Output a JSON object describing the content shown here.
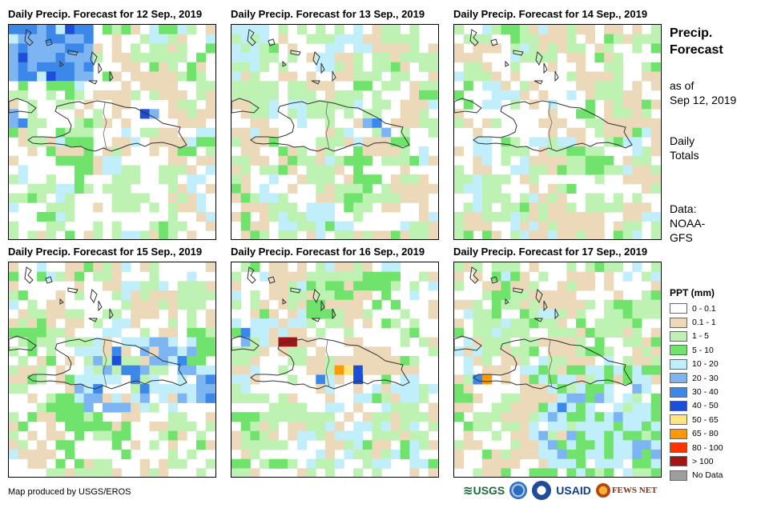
{
  "panels": [
    {
      "title": "Daily Precip. Forecast for 12 Sep., 2019",
      "seed": 12
    },
    {
      "title": "Daily Precip. Forecast for 13 Sep., 2019",
      "seed": 13
    },
    {
      "title": "Daily Precip. Forecast for 14 Sep., 2019",
      "seed": 14
    },
    {
      "title": "Daily Precip. Forecast for 15 Sep., 2019",
      "seed": 15
    },
    {
      "title": "Daily Precip. Forecast for 16 Sep., 2019",
      "seed": 16
    },
    {
      "title": "Daily Precip. Forecast for 17 Sep., 2019",
      "seed": 17
    }
  ],
  "side": {
    "title_line1": "Precip.",
    "title_line2": "Forecast",
    "asof_line1": "as of",
    "asof_line2": "Sep 12, 2019",
    "totals_line1": "Daily",
    "totals_line2": "Totals",
    "data_line1": "Data:",
    "data_line2": "NOAA-",
    "data_line3": "GFS"
  },
  "legend": {
    "title": "PPT (mm)",
    "items": [
      {
        "label": "0 - 0.1",
        "color": "#ffffff"
      },
      {
        "label": "0.1 - 1",
        "color": "#ecd9b9"
      },
      {
        "label": "1 - 5",
        "color": "#bdf2b3"
      },
      {
        "label": "5 - 10",
        "color": "#6fe36b"
      },
      {
        "label": "10 - 20",
        "color": "#c1eefb"
      },
      {
        "label": "20 - 30",
        "color": "#7db4f2"
      },
      {
        "label": "30 - 40",
        "color": "#3c87ea"
      },
      {
        "label": "40 - 50",
        "color": "#1d4ed8"
      },
      {
        "label": "50 - 65",
        "color": "#ffe680"
      },
      {
        "label": "65 - 80",
        "color": "#ff9900"
      },
      {
        "label": "80 - 100",
        "color": "#ff3300"
      },
      {
        "label": "> 100",
        "color": "#a31515"
      },
      {
        "label": "No Data",
        "color": "#9e9e9e"
      }
    ]
  },
  "footer": {
    "credit": "Map produced by USGS/EROS",
    "logo_usgs": "USGS",
    "logo_usaid": "USAID",
    "logo_fews": "FEWS NET"
  }
}
